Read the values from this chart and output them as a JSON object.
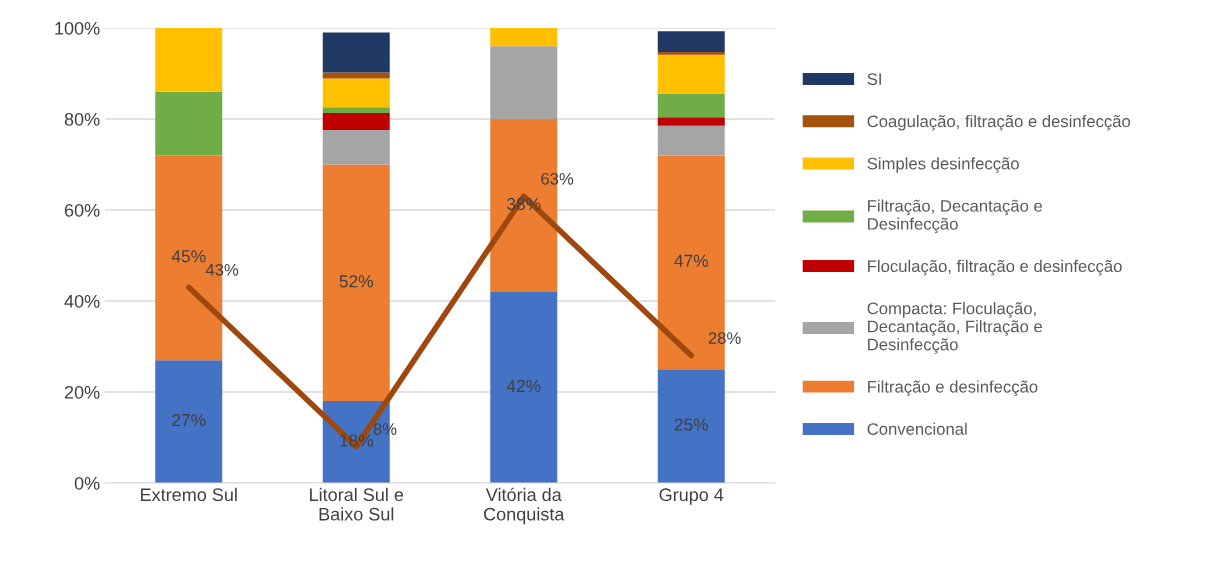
{
  "chart_data": {
    "type": "bar",
    "stacked": true,
    "categories": [
      "Extremo Sul",
      "Litoral Sul e\nBaixo Sul",
      "Vitória da\nConquista",
      "Grupo 4"
    ],
    "series": [
      {
        "name": "Convencional",
        "color": "#4472c4",
        "values": [
          27,
          18,
          42,
          25
        ],
        "value_labels": [
          "27%",
          "18%",
          "42%",
          "25%"
        ]
      },
      {
        "name": "Filtração e desinfecção",
        "color": "#ed7d31",
        "values": [
          45,
          52,
          38,
          47
        ],
        "value_labels": [
          "45%",
          "52%",
          "38%",
          "47%"
        ]
      },
      {
        "name": "Compacta: Floculação,\nDecantação, Filtração e\nDesinfecção",
        "color": "#a5a5a5",
        "values": [
          0,
          7.6,
          16,
          6.5
        ]
      },
      {
        "name": "Floculação, filtração e desinfecção",
        "color": "#c00000",
        "values": [
          0,
          3.7,
          0,
          1.9
        ]
      },
      {
        "name": "Filtração, Decantação e\nDesinfecção",
        "color": "#70ad47",
        "values": [
          14,
          1.3,
          0,
          5.2
        ]
      },
      {
        "name": "Simples desinfecção",
        "color": "#ffc000",
        "values": [
          14,
          6.3,
          4,
          8.5
        ]
      },
      {
        "name": "Coagulação, filtração e desinfecção",
        "color": "#a5520a",
        "values": [
          0,
          1.3,
          0,
          0.6
        ]
      },
      {
        "name": "SI",
        "color": "#203864",
        "values": [
          0,
          8.8,
          0,
          4.6
        ]
      },
      {
        "type": "line",
        "color": "#9e480e",
        "values": [
          43,
          8,
          63,
          28
        ],
        "value_labels": [
          "43%",
          "8%",
          "63%",
          "28%"
        ]
      }
    ],
    "ylim": [
      0,
      100
    ],
    "yticks": [
      {
        "value": 0,
        "label": "0%"
      },
      {
        "value": 20,
        "label": "20%"
      },
      {
        "value": 40,
        "label": "40%"
      },
      {
        "value": 60,
        "label": "60%"
      },
      {
        "value": 80,
        "label": "80%"
      },
      {
        "value": 100,
        "label": "100%"
      }
    ],
    "grid": "y",
    "legend": "right",
    "marker": "none",
    "line_style": "solid"
  }
}
